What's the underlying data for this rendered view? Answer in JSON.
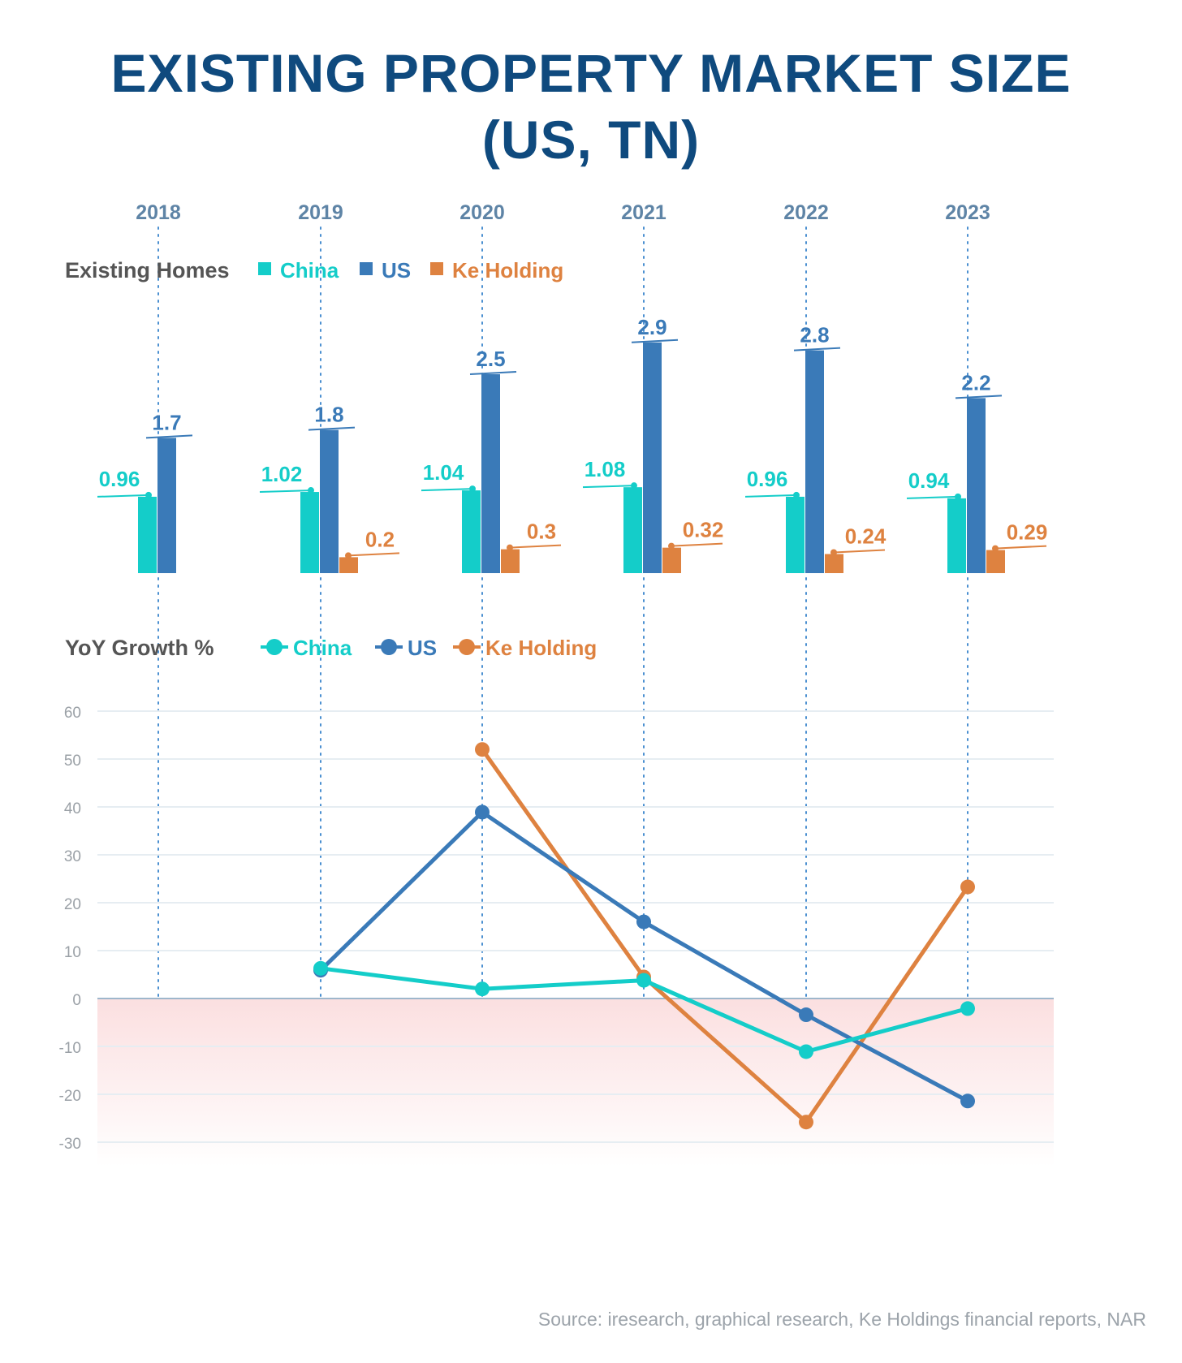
{
  "title_line1": "EXISTING PROPERTY MARKET SIZE",
  "title_line2": "(US, TN)",
  "source": "Source: iresearch, graphical research, Ke Holdings financial reports, NAR",
  "colors": {
    "china": "#14cdc9",
    "us": "#3a7ab8",
    "ke": "#de8240",
    "title": "#0f4a7e",
    "year": "#5e84a6",
    "section": "#555555",
    "axis": "#9aa0a6"
  },
  "chart_data": [
    {
      "type": "bar",
      "title": "Existing Homes",
      "categories": [
        "2018",
        "2019",
        "2020",
        "2021",
        "2022",
        "2023"
      ],
      "series": [
        {
          "name": "China",
          "values": [
            0.96,
            1.02,
            1.04,
            1.08,
            0.96,
            0.94
          ],
          "labels": [
            "0.96",
            "1.02",
            "1.04",
            "1.08",
            "0.96",
            "0.94"
          ]
        },
        {
          "name": "US",
          "values": [
            1.7,
            1.8,
            2.5,
            2.9,
            2.8,
            2.2
          ],
          "labels": [
            "1.7",
            "1.8",
            "2.5",
            "2.9",
            "2.8",
            "2.2"
          ]
        },
        {
          "name": "Ke Holding",
          "values": [
            null,
            0.2,
            0.3,
            0.32,
            0.24,
            0.29
          ],
          "labels": [
            "",
            "0.2",
            "0.3",
            "0.32",
            "0.24",
            "0.29"
          ]
        }
      ]
    },
    {
      "type": "line",
      "title": "YoY Growth %",
      "categories": [
        "2018",
        "2019",
        "2020",
        "2021",
        "2022",
        "2023"
      ],
      "yticks": [
        "60",
        "50",
        "40",
        "30",
        "20",
        "10",
        "0",
        "-10",
        "-20",
        "-30"
      ],
      "ylim": [
        -30,
        60
      ],
      "series": [
        {
          "name": "China",
          "values": [
            null,
            6.3,
            2.0,
            3.8,
            -11.1,
            -2.1
          ]
        },
        {
          "name": "US",
          "values": [
            null,
            5.9,
            38.9,
            16.0,
            -3.4,
            -21.4
          ]
        },
        {
          "name": "Ke Holding",
          "values": [
            null,
            null,
            52.0,
            4.5,
            -25.8,
            23.3
          ]
        }
      ]
    }
  ]
}
